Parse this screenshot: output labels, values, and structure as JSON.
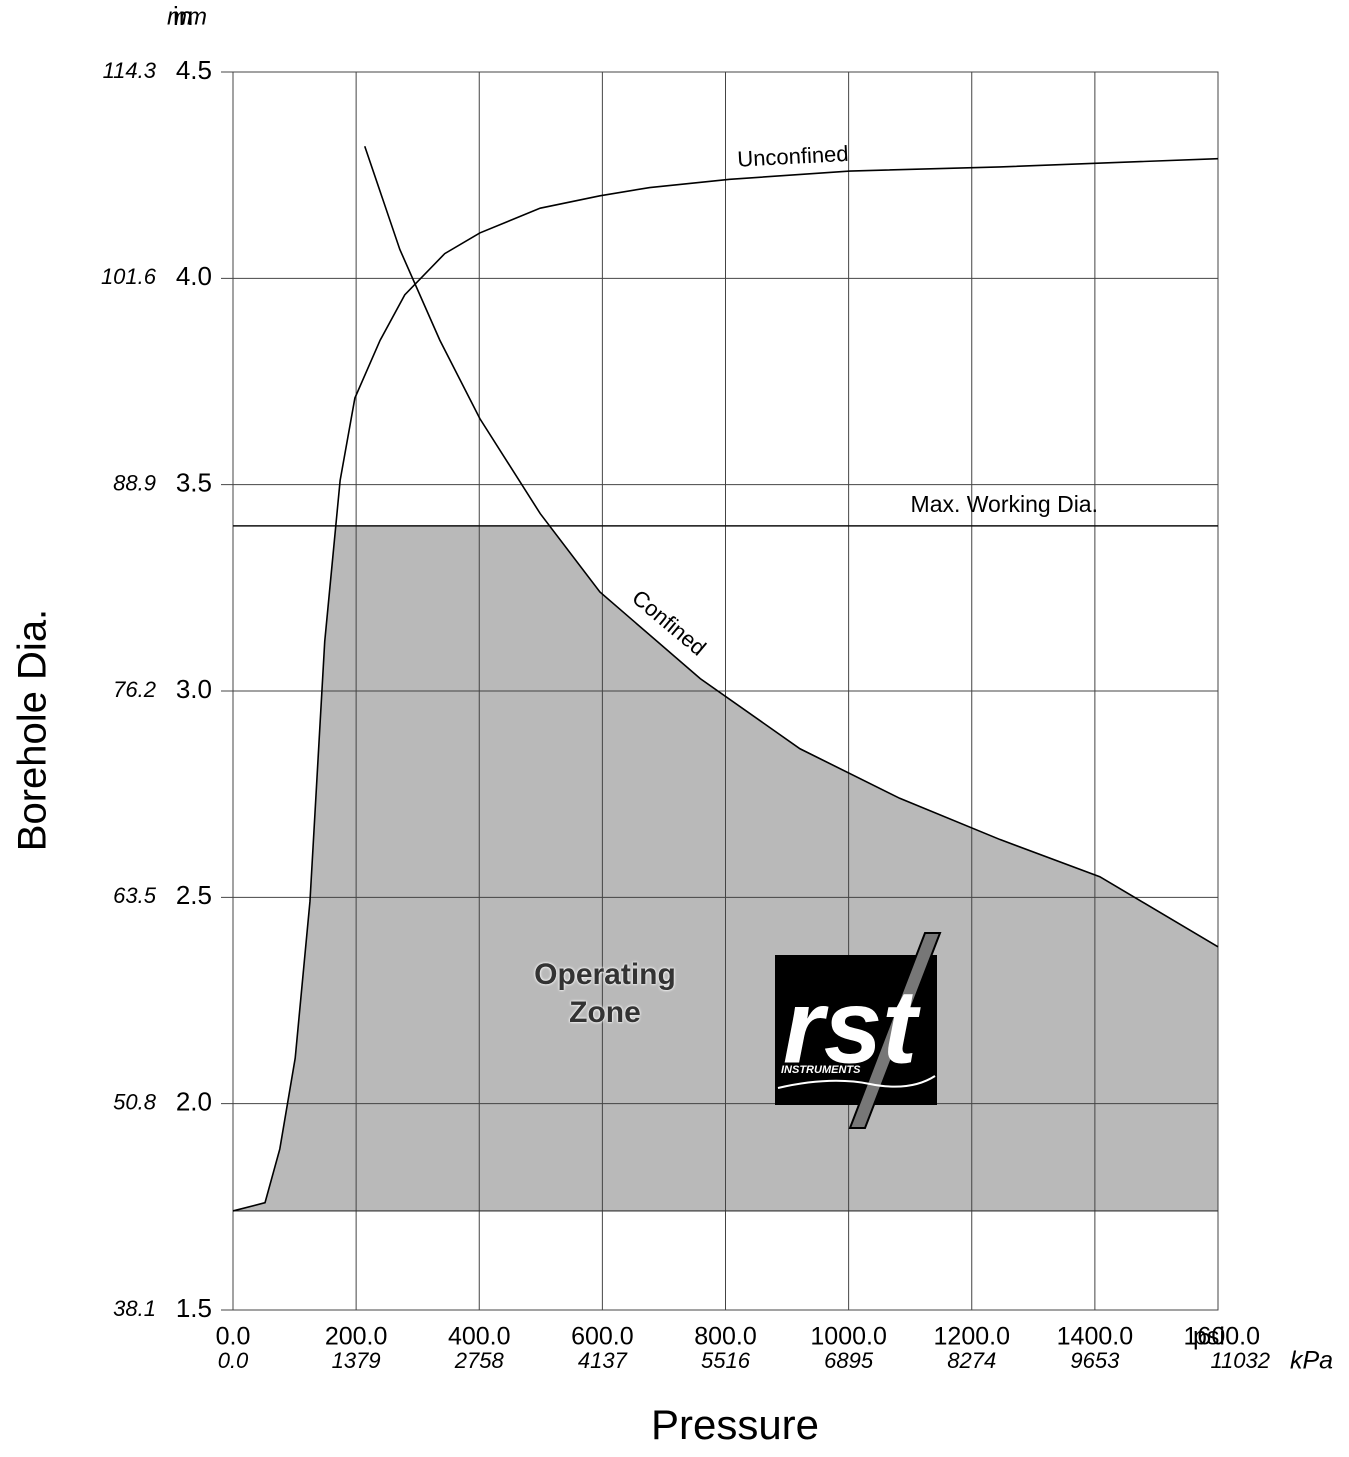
{
  "chart_data": {
    "type": "line",
    "x_label": "Pressure",
    "y_label": "Borehole Dia.",
    "x_unit": "psi",
    "x2_unit": "kPa",
    "y_unit": "in",
    "y2_unit": "mm",
    "xlim": [
      0,
      1600
    ],
    "xticks": [
      {
        "value": 0,
        "label": "0.0"
      },
      {
        "value": 200,
        "label": "200.0"
      },
      {
        "value": 400,
        "label": "400.0"
      },
      {
        "value": 600,
        "label": "600.0"
      },
      {
        "value": 800,
        "label": "800.0"
      },
      {
        "value": 1000,
        "label": "1000.0"
      },
      {
        "value": 1200,
        "label": "1200.0"
      },
      {
        "value": 1400,
        "label": "1400.0"
      },
      {
        "value": 1600,
        "label": "1600.0"
      }
    ],
    "x2tick_labels": [
      "0.0",
      "1379",
      "2758",
      "4137",
      "5516",
      "6895",
      "8274",
      "9653",
      "11032"
    ],
    "ylim": [
      1.5,
      4.5
    ],
    "yticks": [
      1.5,
      {
        "value": 2,
        "label": "2.0"
      },
      2.5,
      {
        "value": 3,
        "label": "3.0"
      },
      3.5,
      {
        "value": 4,
        "label": "4.0"
      },
      4.5
    ],
    "y2tick_labels": [
      "38.1",
      "50.8",
      "63.5",
      "76.2",
      "88.9",
      "101.6",
      "114.3"
    ],
    "grid": true,
    "series": [
      {
        "name": "Unconfined",
        "color": "#000000",
        "x": [
          0,
          52,
          76,
          101,
          125,
          149,
          174,
          198,
          239,
          279,
          344,
          401,
          499,
          596,
          677,
          807,
          1002,
          1246,
          1600
        ],
        "values": [
          1.74,
          1.76,
          1.89,
          2.11,
          2.49,
          3.12,
          3.51,
          3.71,
          3.85,
          3.96,
          4.06,
          4.11,
          4.17,
          4.2,
          4.22,
          4.24,
          4.26,
          4.27,
          4.29
        ]
      },
      {
        "name": "Confined",
        "color": "#000000",
        "x": [
          214,
          271,
          336,
          401,
          499,
          596,
          759,
          921,
          1083,
          1246,
          1408,
          1600
        ],
        "values": [
          4.32,
          4.07,
          3.85,
          3.66,
          3.43,
          3.24,
          3.03,
          2.86,
          2.74,
          2.64,
          2.55,
          2.38
        ]
      }
    ],
    "reference_line": {
      "value": 3.4,
      "label": "Max. Working Dia."
    },
    "zone": {
      "label": "Operating Zone",
      "floor": 1.74,
      "color": "#b9b9b9"
    },
    "logo": {
      "text": "rst",
      "subtext": "INSTRUMENTS"
    }
  }
}
